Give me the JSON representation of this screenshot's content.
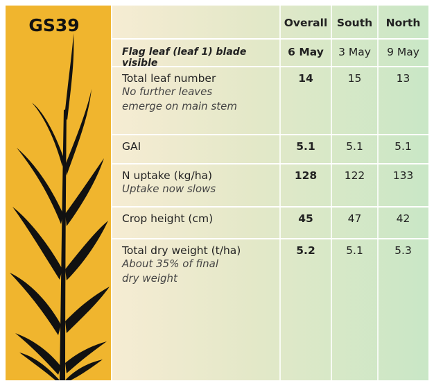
{
  "header": {
    "stage": "GS39"
  },
  "table": {
    "columns": [
      "Overall",
      "South",
      "North"
    ],
    "rows": [
      {
        "label": "Flag leaf (leaf 1) blade visible",
        "values": [
          "6 May",
          "3 May",
          "9 May"
        ]
      },
      {
        "label": "Total leaf number",
        "note": [
          "No further leaves",
          "emerge on main stem"
        ],
        "values": [
          14,
          15,
          13
        ]
      },
      {
        "label": "GAI",
        "values": [
          5.1,
          5.1,
          5.1
        ]
      },
      {
        "label": "N uptake (kg/ha)",
        "note": [
          "Uptake now slows"
        ],
        "values": [
          128,
          122,
          133
        ]
      },
      {
        "label": "Crop height (cm)",
        "values": [
          45,
          47,
          42
        ]
      },
      {
        "label": "Total dry weight (t/ha)",
        "note": [
          "About 35% of final",
          "dry weight"
        ],
        "values": [
          5.2,
          5.1,
          5.3
        ]
      }
    ]
  }
}
